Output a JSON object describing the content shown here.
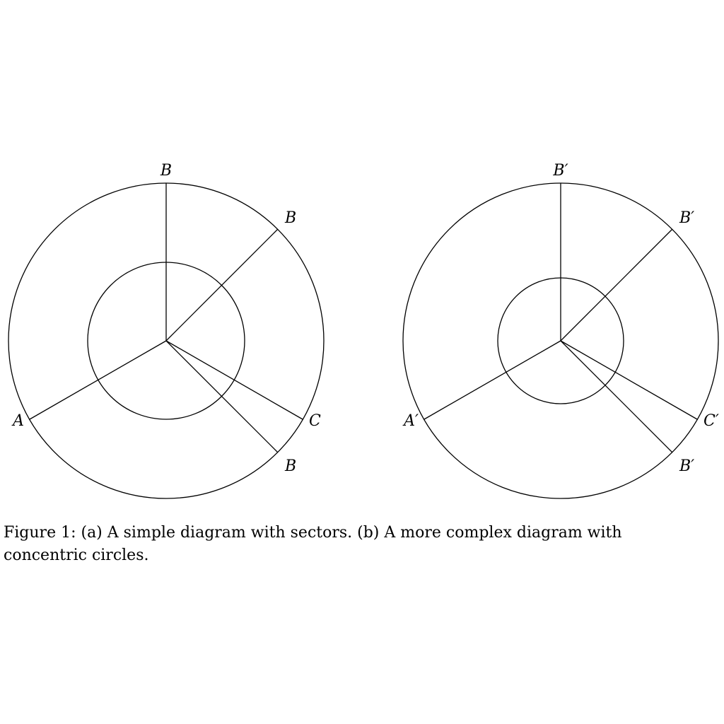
{
  "figure": {
    "stroke_color": "#000000",
    "background_color": "#ffffff",
    "panels": [
      {
        "name": "diagram-a",
        "labels": {
          "top": "B",
          "upper_right": "B",
          "left": "A",
          "right": "C",
          "lower_right": "B"
        }
      },
      {
        "name": "diagram-b",
        "labels": {
          "top": "B′",
          "upper_right": "B′",
          "left": "A′",
          "right": "C′",
          "lower_right": "B′"
        }
      }
    ],
    "caption": "Figure 1: (a) A simple diagram with sectors. (b) A more complex diagram with concentric circles."
  }
}
